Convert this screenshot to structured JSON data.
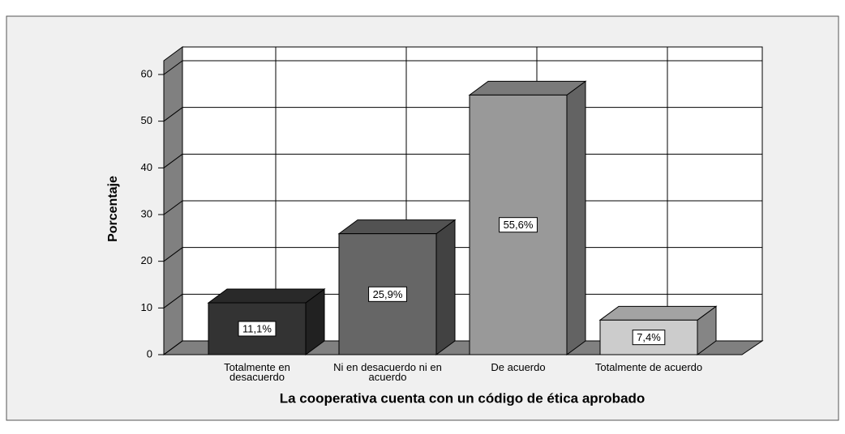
{
  "chart_data": {
    "type": "bar3d",
    "ylabel": "Porcentaje",
    "xlabel": "La cooperativa cuenta con un código de ética aprobado",
    "categories": [
      "Totalmente en desacuerdo",
      "Ni en desacuerdo ni en acuerdo",
      "De acuerdo",
      "Totalmente de acuerdo"
    ],
    "values": [
      11.1,
      25.9,
      55.6,
      7.4
    ],
    "value_labels": [
      "11,1%",
      "25,9%",
      "55,6%",
      "7,4%"
    ],
    "colors": [
      "#333333",
      "#666666",
      "#999999",
      "#cccccc"
    ],
    "ylim": [
      0,
      63
    ],
    "yticks": [
      0,
      10,
      20,
      30,
      40,
      50,
      60
    ],
    "grid": true
  }
}
